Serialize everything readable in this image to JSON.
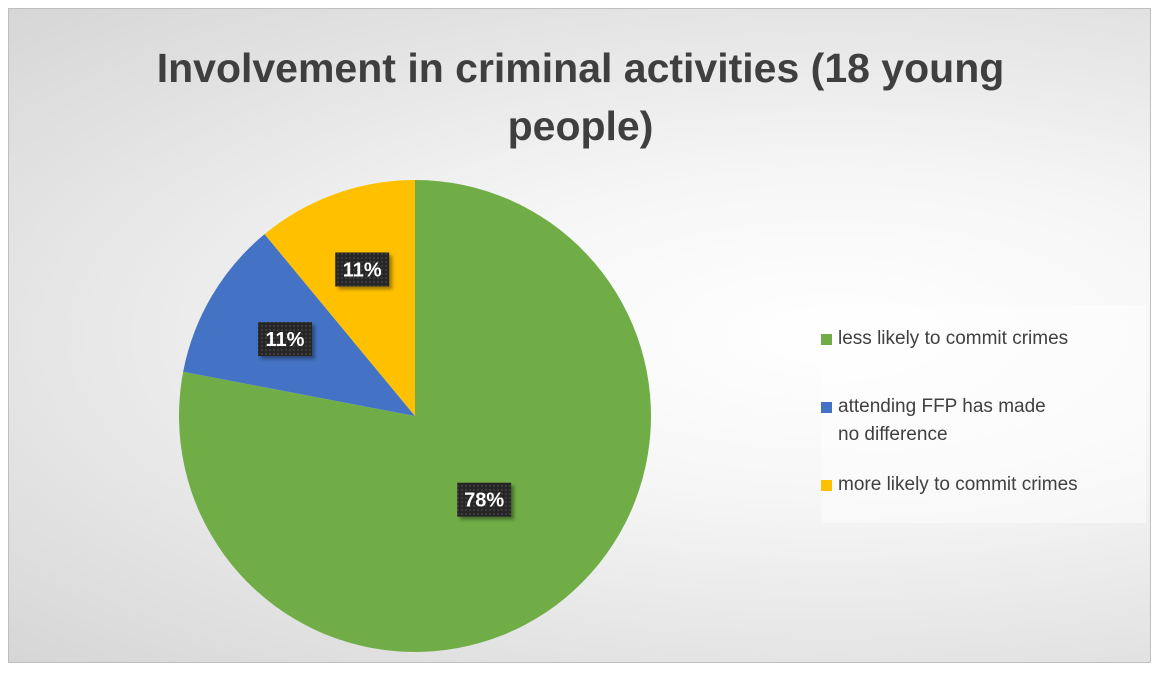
{
  "chart_data": {
    "type": "pie",
    "title_lines": [
      "Involvement in criminal activities (18 young",
      "people)"
    ],
    "slices": [
      {
        "name": "less likely to commit crimes",
        "value": 78,
        "label": "78%",
        "color": "#70ad47"
      },
      {
        "name": "attending FFP has made no difference",
        "value": 11,
        "label": "11%",
        "color": "#4472c4"
      },
      {
        "name": "more likely to commit crimes",
        "value": 11,
        "label": "11%",
        "color": "#ffc000"
      }
    ],
    "legend_position": "right",
    "data_label_style": "dark-box"
  }
}
